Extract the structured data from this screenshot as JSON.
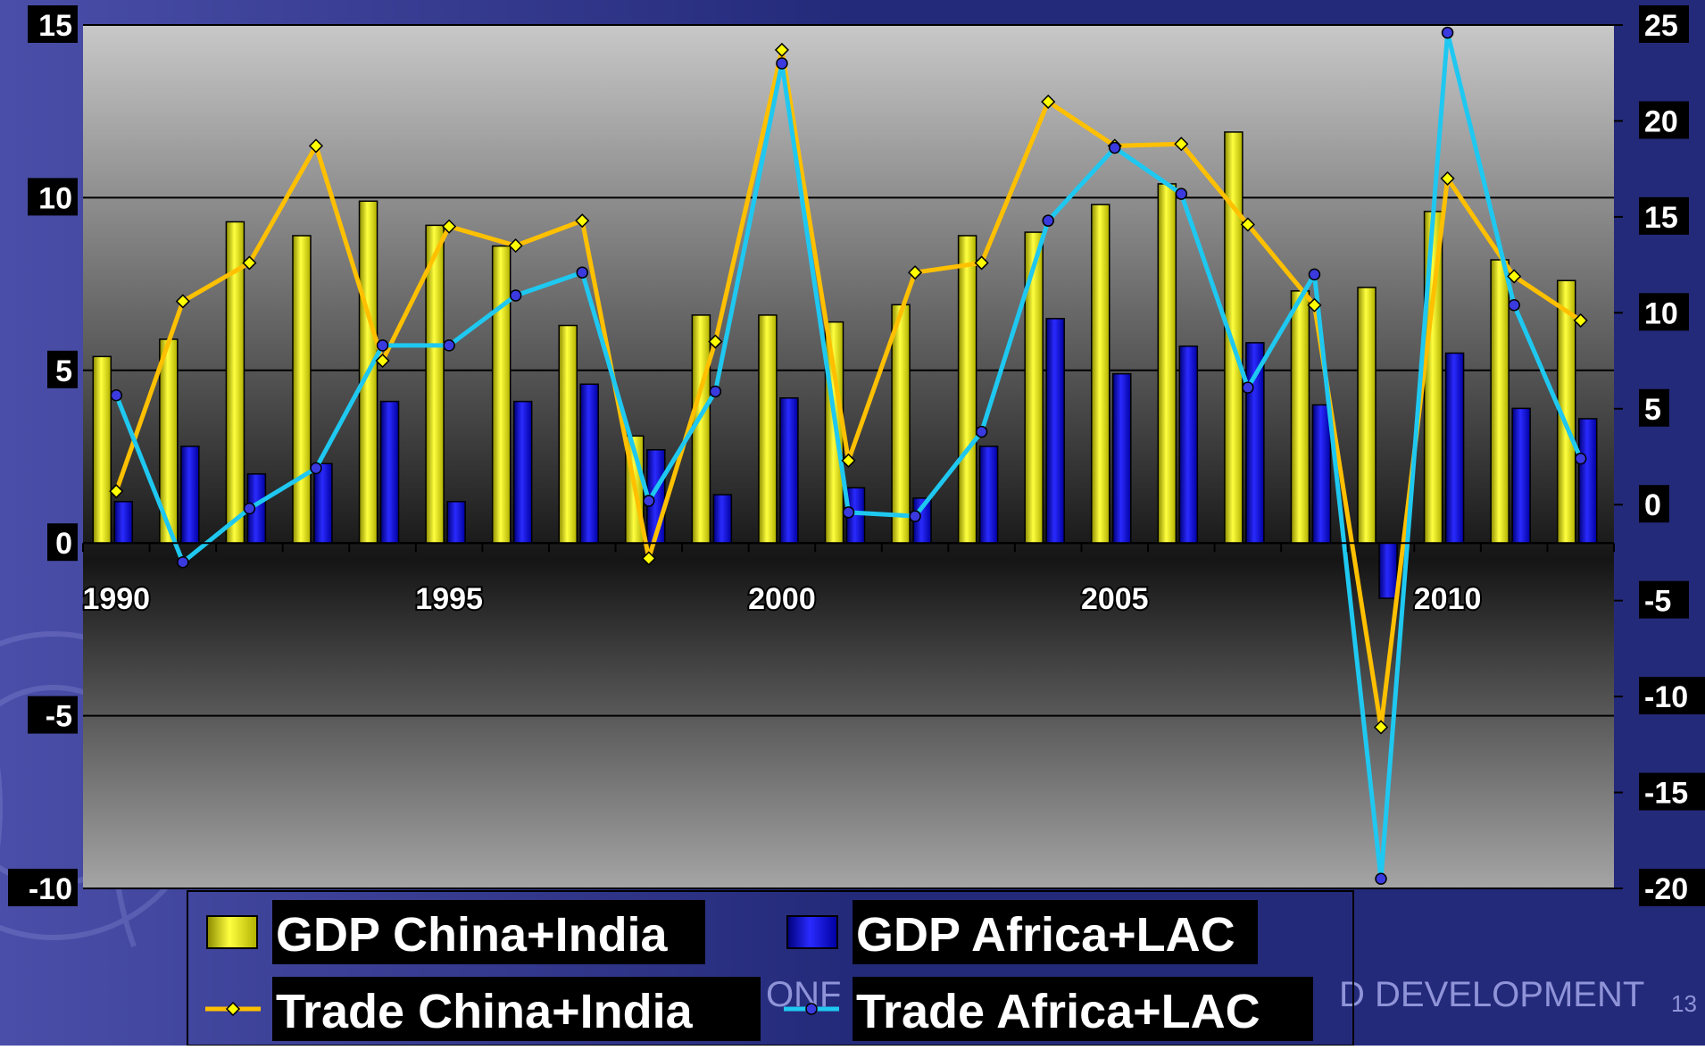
{
  "colors": {
    "background_dark": "#242a7a",
    "background_light": "#4a4ea8",
    "plot_top": "#c8c8c8",
    "plot_middle": "#151515",
    "plot_bottom": "#a5a5a5",
    "gdp_china_india": "#ffff00",
    "gdp_africa_lac": "#0000ee",
    "trade_china_india": "#ffc000",
    "trade_africa_lac": "#1fc8f0",
    "label_bg": "#000000",
    "label_text": "#ffffff"
  },
  "footer": {
    "left_fragment": "ONF",
    "right_fragment": "D DEVELOPMENT",
    "page_number": "13"
  },
  "chart_data": {
    "type": "bar",
    "title": "",
    "xlabel": "",
    "ylabel": "",
    "x": [
      1990,
      1991,
      1992,
      1993,
      1994,
      1995,
      1996,
      1997,
      1998,
      1999,
      2000,
      2001,
      2002,
      2003,
      2004,
      2005,
      2006,
      2007,
      2008,
      2009,
      2010,
      2011,
      2012
    ],
    "x_tick_labels": [
      "1990",
      "1995",
      "2000",
      "2005",
      "2010"
    ],
    "ylim": [
      -10,
      15
    ],
    "y2lim": [
      -20,
      25
    ],
    "y_ticks": [
      "15",
      "10",
      "5",
      "0",
      "-5",
      "-10"
    ],
    "y2_ticks": [
      "25",
      "20",
      "15",
      "10",
      "5",
      "0",
      "-5",
      "-10",
      "-15",
      "-20"
    ],
    "grid": "horizontal",
    "legend_position": "bottom",
    "series": [
      {
        "name": "GDP China+India",
        "kind": "bar",
        "axis": "left",
        "values": [
          5.4,
          5.9,
          9.3,
          8.9,
          9.9,
          9.2,
          8.6,
          6.3,
          3.1,
          6.6,
          6.6,
          6.4,
          6.9,
          8.9,
          9.0,
          9.8,
          10.4,
          11.9,
          7.3,
          7.4,
          9.6,
          8.2,
          7.6
        ]
      },
      {
        "name": "GDP Africa+LAC",
        "kind": "bar",
        "axis": "left",
        "values": [
          1.2,
          2.8,
          2.0,
          2.3,
          4.1,
          1.2,
          4.1,
          4.6,
          2.7,
          1.4,
          4.2,
          1.6,
          1.3,
          2.8,
          6.5,
          4.9,
          5.7,
          5.8,
          4.0,
          -1.6,
          5.5,
          3.9,
          3.6
        ]
      },
      {
        "name": "Trade China+India",
        "kind": "line",
        "axis": "right",
        "values": [
          0.7,
          10.6,
          12.6,
          18.7,
          7.5,
          14.5,
          13.5,
          14.8,
          -2.8,
          8.5,
          23.7,
          2.3,
          12.1,
          12.6,
          21.0,
          18.7,
          18.8,
          14.6,
          10.4,
          -11.6,
          17.0,
          11.9,
          9.6
        ]
      },
      {
        "name": "Trade Africa+LAC",
        "kind": "line",
        "axis": "right",
        "values": [
          5.7,
          -3.0,
          -0.2,
          1.9,
          8.3,
          8.3,
          10.9,
          12.1,
          0.2,
          5.9,
          23.0,
          -0.4,
          -0.6,
          3.8,
          14.8,
          18.6,
          16.2,
          6.1,
          12.0,
          -19.5,
          24.6,
          10.4,
          2.4
        ]
      }
    ]
  }
}
